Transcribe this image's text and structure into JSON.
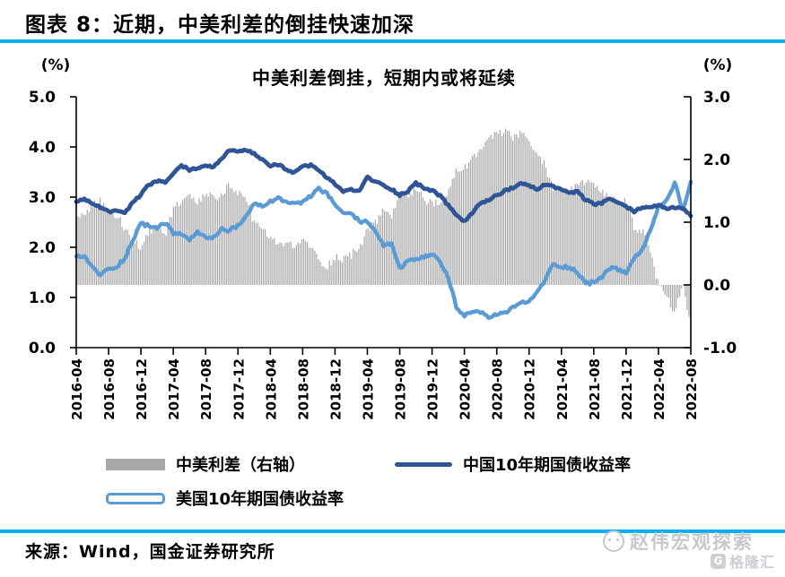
{
  "header": {
    "title": "图表 8：近期，中美利差的倒挂快速加深"
  },
  "chart_data": {
    "type": "combo",
    "title": "中美利差倒挂，短期内或将延续",
    "left_axis": {
      "unit": "(%)",
      "min": 0,
      "max": 5,
      "tick_labels": [
        "0.0",
        "1.0",
        "2.0",
        "3.0",
        "4.0",
        "5.0"
      ]
    },
    "right_axis": {
      "unit": "(%)",
      "min": -1,
      "max": 3,
      "tick_labels": [
        "-1.0",
        "0.0",
        "1.0",
        "2.0",
        "3.0"
      ]
    },
    "x_tick_labels": [
      "2016-04",
      "2016-08",
      "2016-12",
      "2017-04",
      "2017-08",
      "2017-12",
      "2018-04",
      "2018-08",
      "2018-12",
      "2019-04",
      "2019-08",
      "2019-12",
      "2020-04",
      "2020-08",
      "2020-12",
      "2021-04",
      "2021-08",
      "2021-12",
      "2022-04",
      "2022-08"
    ],
    "months": [
      "2016-04",
      "2016-05",
      "2016-06",
      "2016-07",
      "2016-08",
      "2016-09",
      "2016-10",
      "2016-11",
      "2016-12",
      "2017-01",
      "2017-02",
      "2017-03",
      "2017-04",
      "2017-05",
      "2017-06",
      "2017-07",
      "2017-08",
      "2017-09",
      "2017-10",
      "2017-11",
      "2017-12",
      "2018-01",
      "2018-02",
      "2018-03",
      "2018-04",
      "2018-05",
      "2018-06",
      "2018-07",
      "2018-08",
      "2018-09",
      "2018-10",
      "2018-11",
      "2018-12",
      "2019-01",
      "2019-02",
      "2019-03",
      "2019-04",
      "2019-05",
      "2019-06",
      "2019-07",
      "2019-08",
      "2019-09",
      "2019-10",
      "2019-11",
      "2019-12",
      "2020-01",
      "2020-02",
      "2020-03",
      "2020-04",
      "2020-05",
      "2020-06",
      "2020-07",
      "2020-08",
      "2020-09",
      "2020-10",
      "2020-11",
      "2020-12",
      "2021-01",
      "2021-02",
      "2021-03",
      "2021-04",
      "2021-05",
      "2021-06",
      "2021-07",
      "2021-08",
      "2021-09",
      "2021-10",
      "2021-11",
      "2021-12",
      "2022-01",
      "2022-02",
      "2022-03",
      "2022-04",
      "2022-05",
      "2022-06",
      "2022-07",
      "2022-08"
    ],
    "series": [
      {
        "name": "中美利差（右轴）",
        "type": "bar",
        "axis": "right",
        "color": "#A7A7A7",
        "derived": "china_minus_us"
      },
      {
        "name": "中国10年期国债收益率",
        "type": "line",
        "axis": "left",
        "color": "#2F5597",
        "values": [
          2.91,
          2.95,
          2.88,
          2.8,
          2.7,
          2.74,
          2.68,
          2.88,
          3.05,
          3.25,
          3.32,
          3.28,
          3.48,
          3.62,
          3.55,
          3.58,
          3.63,
          3.6,
          3.76,
          3.95,
          3.89,
          3.93,
          3.86,
          3.74,
          3.63,
          3.64,
          3.56,
          3.48,
          3.6,
          3.64,
          3.54,
          3.38,
          3.26,
          3.12,
          3.14,
          3.12,
          3.4,
          3.3,
          3.24,
          3.16,
          3.04,
          3.12,
          3.28,
          3.18,
          3.14,
          3.02,
          2.84,
          2.64,
          2.52,
          2.68,
          2.88,
          2.94,
          3.04,
          3.12,
          3.18,
          3.28,
          3.22,
          3.16,
          3.26,
          3.2,
          3.16,
          3.08,
          3.1,
          2.94,
          2.86,
          2.88,
          2.96,
          2.9,
          2.8,
          2.72,
          2.8,
          2.8,
          2.84,
          2.76,
          2.8,
          2.76,
          2.62
        ]
      },
      {
        "name": "美国10年期国债收益率",
        "type": "line",
        "axis": "left",
        "color": "#5B9BD5",
        "values": [
          1.8,
          1.82,
          1.6,
          1.45,
          1.56,
          1.62,
          1.78,
          2.15,
          2.48,
          2.42,
          2.4,
          2.48,
          2.28,
          2.26,
          2.16,
          2.3,
          2.18,
          2.2,
          2.36,
          2.34,
          2.42,
          2.62,
          2.86,
          2.82,
          2.92,
          2.97,
          2.9,
          2.88,
          2.88,
          3.02,
          3.16,
          3.08,
          2.82,
          2.7,
          2.66,
          2.52,
          2.52,
          2.32,
          2.04,
          2.06,
          1.58,
          1.72,
          1.74,
          1.8,
          1.86,
          1.72,
          1.38,
          0.82,
          0.64,
          0.68,
          0.72,
          0.6,
          0.66,
          0.68,
          0.82,
          0.88,
          0.92,
          1.1,
          1.36,
          1.66,
          1.62,
          1.6,
          1.5,
          1.28,
          1.3,
          1.42,
          1.58,
          1.56,
          1.48,
          1.8,
          1.94,
          2.32,
          2.82,
          2.92,
          3.3,
          2.72,
          3.3
        ]
      }
    ]
  },
  "legend": {
    "items": [
      {
        "label": "中美利差（右轴）",
        "swatch": "bar"
      },
      {
        "label": "中国10年期国债收益率",
        "swatch": "line-dark"
      },
      {
        "label": "美国10年期国债收益率",
        "swatch": "line-light"
      }
    ]
  },
  "footer": {
    "source": "来源：Wind，国金证券研究所"
  },
  "watermark": {
    "line1": "赵伟宏观探索",
    "line2": "格隆汇",
    "logo_letter": "G"
  },
  "theme": {
    "rule_blue": "#0BAEEF",
    "bar_gray": "#A7A7A7",
    "china_blue": "#2F5597",
    "us_blue": "#5B9BD5"
  }
}
